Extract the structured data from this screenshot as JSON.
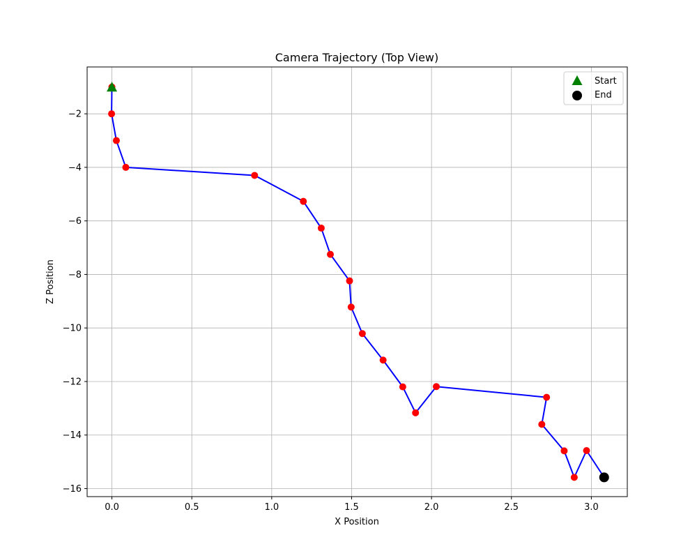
{
  "chart_data": {
    "type": "line",
    "title": "Camera Trajectory (Top View)",
    "xlabel": "X Position",
    "ylabel": "Z Position",
    "xlim": [
      -0.155,
      3.225
    ],
    "ylim": [
      -16.3,
      -0.25
    ],
    "xticks": [
      0.0,
      0.5,
      1.0,
      1.5,
      2.0,
      2.5,
      3.0
    ],
    "xtick_labels": [
      "0.0",
      "0.5",
      "1.0",
      "1.5",
      "2.0",
      "2.5",
      "3.0"
    ],
    "yticks": [
      -16,
      -14,
      -12,
      -10,
      -8,
      -6,
      -4,
      -2
    ],
    "ytick_labels": [
      "−16",
      "−14",
      "−12",
      "−10",
      "−8",
      "−6",
      "−4",
      "−2"
    ],
    "grid": true,
    "legend_position": "top-right",
    "series": [
      {
        "color": "#0000ff",
        "marker_color": "#ff0000",
        "x": [
          0.0,
          -0.002,
          0.028,
          0.087,
          0.893,
          1.198,
          1.31,
          1.367,
          1.487,
          1.497,
          1.567,
          1.697,
          1.82,
          1.9,
          2.03,
          2.72,
          2.69,
          2.83,
          2.893,
          2.97,
          3.08
        ],
        "y": [
          -1.0,
          -2.0,
          -3.0,
          -4.0,
          -4.3,
          -5.27,
          -6.27,
          -7.25,
          -8.24,
          -9.22,
          -10.21,
          -11.2,
          -12.2,
          -13.17,
          -12.19,
          -12.59,
          -13.6,
          -14.59,
          -15.58,
          -14.58,
          -15.58
        ]
      }
    ],
    "markers": [
      {
        "name": "Start",
        "x": 0.0,
        "y": -1.0,
        "shape": "triangle",
        "color": "#008000"
      },
      {
        "name": "End",
        "x": 3.08,
        "y": -15.58,
        "shape": "circle",
        "color": "#000000"
      }
    ]
  }
}
